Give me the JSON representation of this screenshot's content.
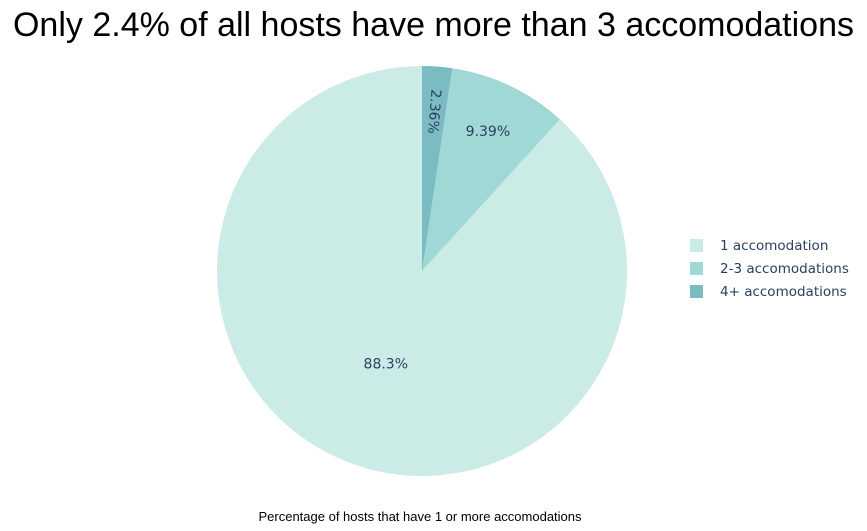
{
  "title": "Only 2.4% of all hosts have more than 3 accomodations",
  "caption": "Percentage of hosts that have 1 or more accomodations",
  "chart_data": {
    "type": "pie",
    "title": "Only 2.4% of all hosts have more than 3 accomodations",
    "direction": "counterclockwise",
    "start": "12 o'clock",
    "legend_position": "right",
    "slices": [
      {
        "name": "1 accomodation",
        "value": 88.3,
        "label": "88.3%",
        "color": "#cbebe6"
      },
      {
        "name": "2-3 accomodations",
        "value": 9.39,
        "label": "9.39%",
        "color": "#a0d8d5"
      },
      {
        "name": "4+ accomodations",
        "value": 2.36,
        "label": "2.36%",
        "color": "#7bbbc2"
      }
    ]
  }
}
